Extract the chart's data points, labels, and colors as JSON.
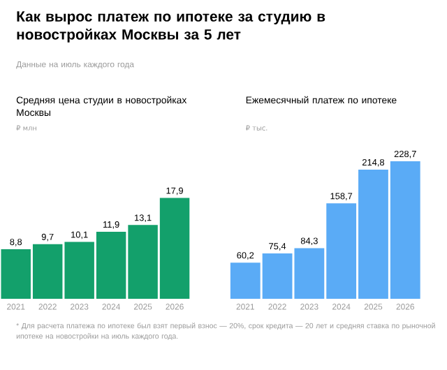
{
  "chart_data": [
    {
      "type": "bar",
      "title": "Средняя цена студии в новостройках Москвы",
      "subtitle": "₽ млн",
      "annotations": [
        "Как вырос платеж по ипотеке за студию в новостройках Москвы за 5 лет",
        "Данные на июль каждого года",
        "* Для расчета платежа по ипотеке был взят первый взнос — 20%, срок кредита — 20 лет и средняя ставка по рыночной ипотеке на новостройки на июль каждого года."
      ],
      "categories": [
        "2021",
        "2022",
        "2023",
        "2024",
        "2025",
        "2026"
      ],
      "values": [
        8.8,
        9.7,
        10.1,
        11.9,
        13.1,
        17.9
      ],
      "value_labels": [
        "8,8",
        "9,7",
        "10,1",
        "11,9",
        "13,1",
        "17,9"
      ],
      "color": "#13a06b"
    },
    {
      "type": "bar",
      "title": "Ежемесячный платеж по ипотеке",
      "subtitle": "₽ тыс.",
      "categories": [
        "2021",
        "2022",
        "2023",
        "2024",
        "2025",
        "2026"
      ],
      "values": [
        60.2,
        75.4,
        84.3,
        158.7,
        214.8,
        228.7
      ],
      "value_labels": [
        "60,2",
        "75,4",
        "84,3",
        "158,7",
        "214,8",
        "228,7"
      ],
      "color": "#5aabf6"
    }
  ]
}
